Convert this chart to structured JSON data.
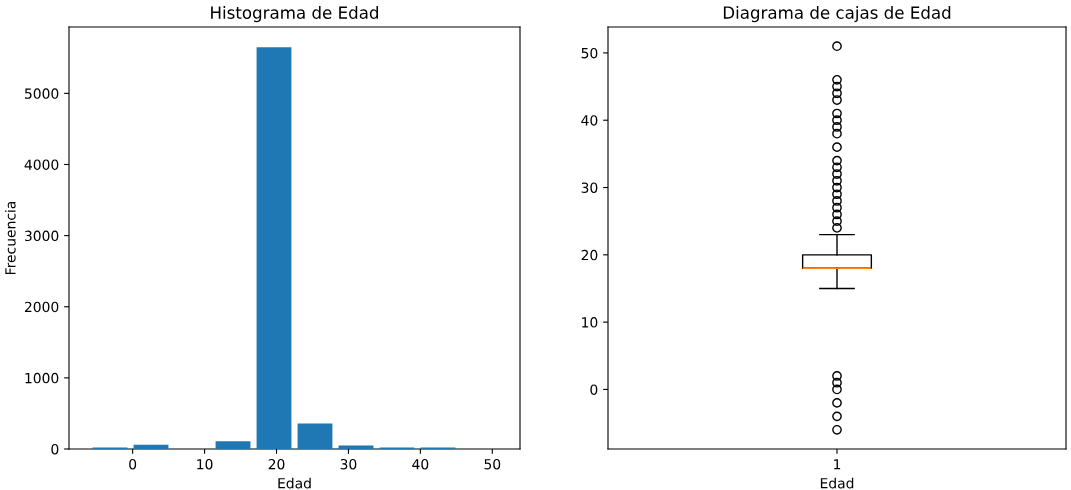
{
  "chart_data": [
    {
      "type": "histogram",
      "title": "Histograma de Edad",
      "xlabel": "Edad",
      "ylabel": "Frecuencia",
      "color": "#1f77b4",
      "bins": [
        -6,
        -0.3,
        5.4,
        11.1,
        16.8,
        22.5,
        28.2,
        33.9,
        39.6,
        45.3,
        51
      ],
      "values": [
        20,
        60,
        0,
        110,
        5650,
        360,
        50,
        20,
        20,
        0
      ],
      "xlim": [
        -8.85,
        53.85
      ],
      "xticks": [
        0,
        10,
        20,
        30,
        40,
        50
      ],
      "ylim": [
        0,
        5933
      ],
      "yticks": [
        0,
        1000,
        2000,
        3000,
        4000,
        5000
      ],
      "grid": false
    },
    {
      "type": "box",
      "title": "Diagrama de cajas de Edad",
      "xlabel": "Edad",
      "categories": [
        "1"
      ],
      "boxes": [
        {
          "low": 15,
          "q1": 18,
          "median": 18,
          "q3": 20,
          "high": 23,
          "outliers": [
            51,
            46,
            45,
            44,
            43,
            41,
            40,
            39,
            38,
            36,
            34,
            33,
            32,
            31,
            30,
            29,
            28,
            27,
            26,
            25,
            24,
            2,
            1,
            0,
            -2,
            -4,
            -6
          ]
        }
      ],
      "ylim": [
        -8.85,
        53.85
      ],
      "yticks": [
        0,
        10,
        20,
        30,
        40,
        50
      ],
      "grid": false
    }
  ]
}
